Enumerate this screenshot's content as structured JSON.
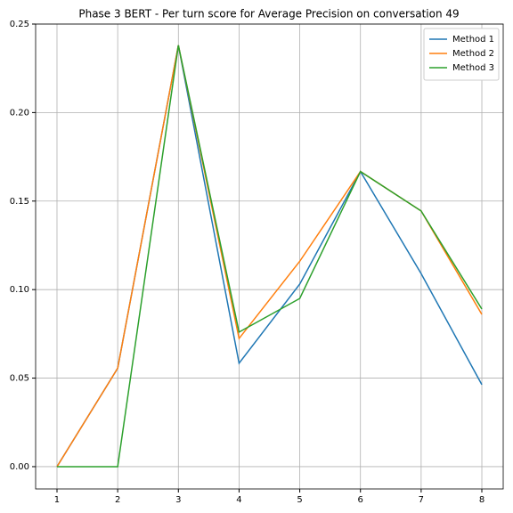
{
  "chart_data": {
    "type": "line",
    "title": "Phase 3 BERT - Per turn score for Average Precision on conversation 49",
    "x": [
      1,
      2,
      3,
      4,
      5,
      6,
      7,
      8
    ],
    "series": [
      {
        "name": "Method 1",
        "color": "#1f77b4",
        "values": [
          0,
          0.0556,
          0.238,
          0.0584,
          0.1031,
          0.1667,
          0.109,
          0.0463
        ]
      },
      {
        "name": "Method 2",
        "color": "#ff7f0e",
        "values": [
          0,
          0.0556,
          0.238,
          0.0724,
          0.116,
          0.1667,
          0.1444,
          0.086
        ]
      },
      {
        "name": "Method 3",
        "color": "#2ca02c",
        "values": [
          0,
          0,
          0.238,
          0.076,
          0.095,
          0.1667,
          0.1444,
          0.089
        ]
      }
    ],
    "xlim": [
      0.648,
      8.352
    ],
    "ylim": [
      -0.0126,
      0.25
    ],
    "xticks": [
      1,
      2,
      3,
      4,
      5,
      6,
      7,
      8
    ],
    "yticks": [
      {
        "value": 0,
        "label": "0.00"
      },
      {
        "value": 0.05,
        "label": "0.05"
      },
      {
        "value": 0.1,
        "label": "0.10"
      },
      {
        "value": 0.15,
        "label": "0.15"
      },
      {
        "value": 0.2,
        "label": "0.20"
      },
      {
        "value": 0.25,
        "label": "0.25"
      }
    ],
    "grid": true,
    "legend": "upper-right"
  }
}
